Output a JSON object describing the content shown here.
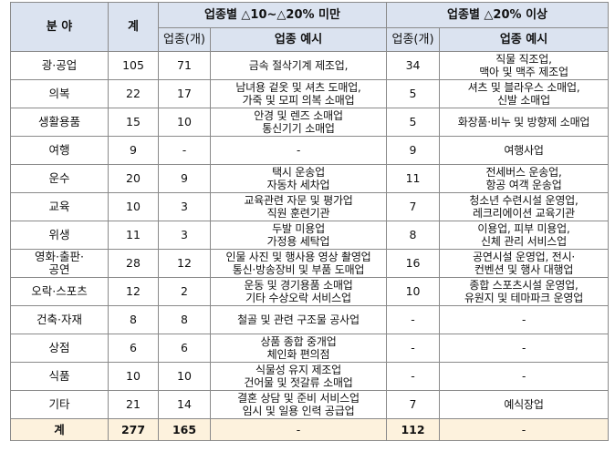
{
  "table": {
    "header": {
      "field": "분 야",
      "total": "계",
      "group1": "업종별 △10~△20% 미만",
      "group2": "업종별 △20% 이상",
      "count_label": "업종(개)",
      "example_label": "업종 예시"
    },
    "rows": [
      {
        "field": "광·공업",
        "total": "105",
        "g1_count": "71",
        "g1_examples": [
          "금속 절삭기계 제조업,"
        ],
        "g2_count": "34",
        "g2_examples": [
          "직물 직조업,",
          "맥아 및 맥주 제조업"
        ]
      },
      {
        "field": "의복",
        "total": "22",
        "g1_count": "17",
        "g1_examples": [
          "남녀용 겉옷 및 셔츠 도매업,",
          "가죽 및 모피 의복 소매업"
        ],
        "g2_count": "5",
        "g2_examples": [
          "셔츠 및 블라우스 소매업,",
          "신발 소매업"
        ]
      },
      {
        "field": "생활용품",
        "total": "15",
        "g1_count": "10",
        "g1_examples": [
          "안경 및 렌즈 소매업",
          "통신기기 소매업"
        ],
        "g2_count": "5",
        "g2_examples": [
          "화장품·비누 및 방향제 소매업"
        ]
      },
      {
        "field": "여행",
        "total": "9",
        "g1_count": "-",
        "g1_examples": [
          "-"
        ],
        "g2_count": "9",
        "g2_examples": [
          "여행사업"
        ]
      },
      {
        "field": "운수",
        "total": "20",
        "g1_count": "9",
        "g1_examples": [
          "택시 운송업",
          "자동차 세차업"
        ],
        "g2_count": "11",
        "g2_examples": [
          "전세버스 운송업,",
          "항공 여객 운송업"
        ]
      },
      {
        "field": "교육",
        "total": "10",
        "g1_count": "3",
        "g1_examples": [
          "교육관련 자문 및 평가업",
          "직원 훈련기관"
        ],
        "g2_count": "7",
        "g2_examples": [
          "청소년 수련시설 운영업,",
          "레크리에이션 교육기관"
        ]
      },
      {
        "field": "위생",
        "total": "11",
        "g1_count": "3",
        "g1_examples": [
          "두발 미용업",
          "가정용 세탁업"
        ],
        "g2_count": "8",
        "g2_examples": [
          "이용업, 피부 미용업,",
          "신체 관리 서비스업"
        ]
      },
      {
        "field": "영화·출판·\n공연",
        "field_lines": [
          "영화·출판·",
          "공연"
        ],
        "total": "28",
        "g1_count": "12",
        "g1_examples": [
          "인물 사진 및 행사용 영상 촬영업",
          "통신·방송장비 및 부품 도매업"
        ],
        "g2_count": "16",
        "g2_examples": [
          "공연시설 운영업, 전시·",
          "컨벤션 및 행사 대행업"
        ]
      },
      {
        "field": "오락·스포츠",
        "total": "12",
        "g1_count": "2",
        "g1_examples": [
          "운동 및 경기용품 소매업",
          "기타 수상오락 서비스업"
        ],
        "g2_count": "10",
        "g2_examples": [
          "종합 스포츠시설 운영업,",
          "유원지 및 테마파크 운영업"
        ]
      },
      {
        "field": "건축·자재",
        "total": "8",
        "g1_count": "8",
        "g1_examples": [
          "철골 및 관련 구조물 공사업"
        ],
        "g2_count": "-",
        "g2_examples": [
          "-"
        ]
      },
      {
        "field": "상점",
        "total": "6",
        "g1_count": "6",
        "g1_examples": [
          "상품 종합 중개업",
          "체인화 편의점"
        ],
        "g2_count": "-",
        "g2_examples": [
          "-"
        ]
      },
      {
        "field": "식품",
        "total": "10",
        "g1_count": "10",
        "g1_examples": [
          "식물성 유지 제조업",
          "건어물 및 젓갈류 소매업"
        ],
        "g2_count": "-",
        "g2_examples": [
          "-"
        ]
      },
      {
        "field": "기타",
        "total": "21",
        "g1_count": "14",
        "g1_examples": [
          "결혼 상담 및 준비 서비스업",
          "임시 및 일용 인력 공급업"
        ],
        "g2_count": "7",
        "g2_examples": [
          "예식장업"
        ]
      }
    ],
    "total_row": {
      "field": "계",
      "total": "277",
      "g1_count": "165",
      "g1_examples": "-",
      "g2_count": "112",
      "g2_examples": "-"
    }
  },
  "colors": {
    "header_bg": "#dbe3f0",
    "total_bg": "#fdf2dd",
    "border": "#8a8a8a"
  }
}
